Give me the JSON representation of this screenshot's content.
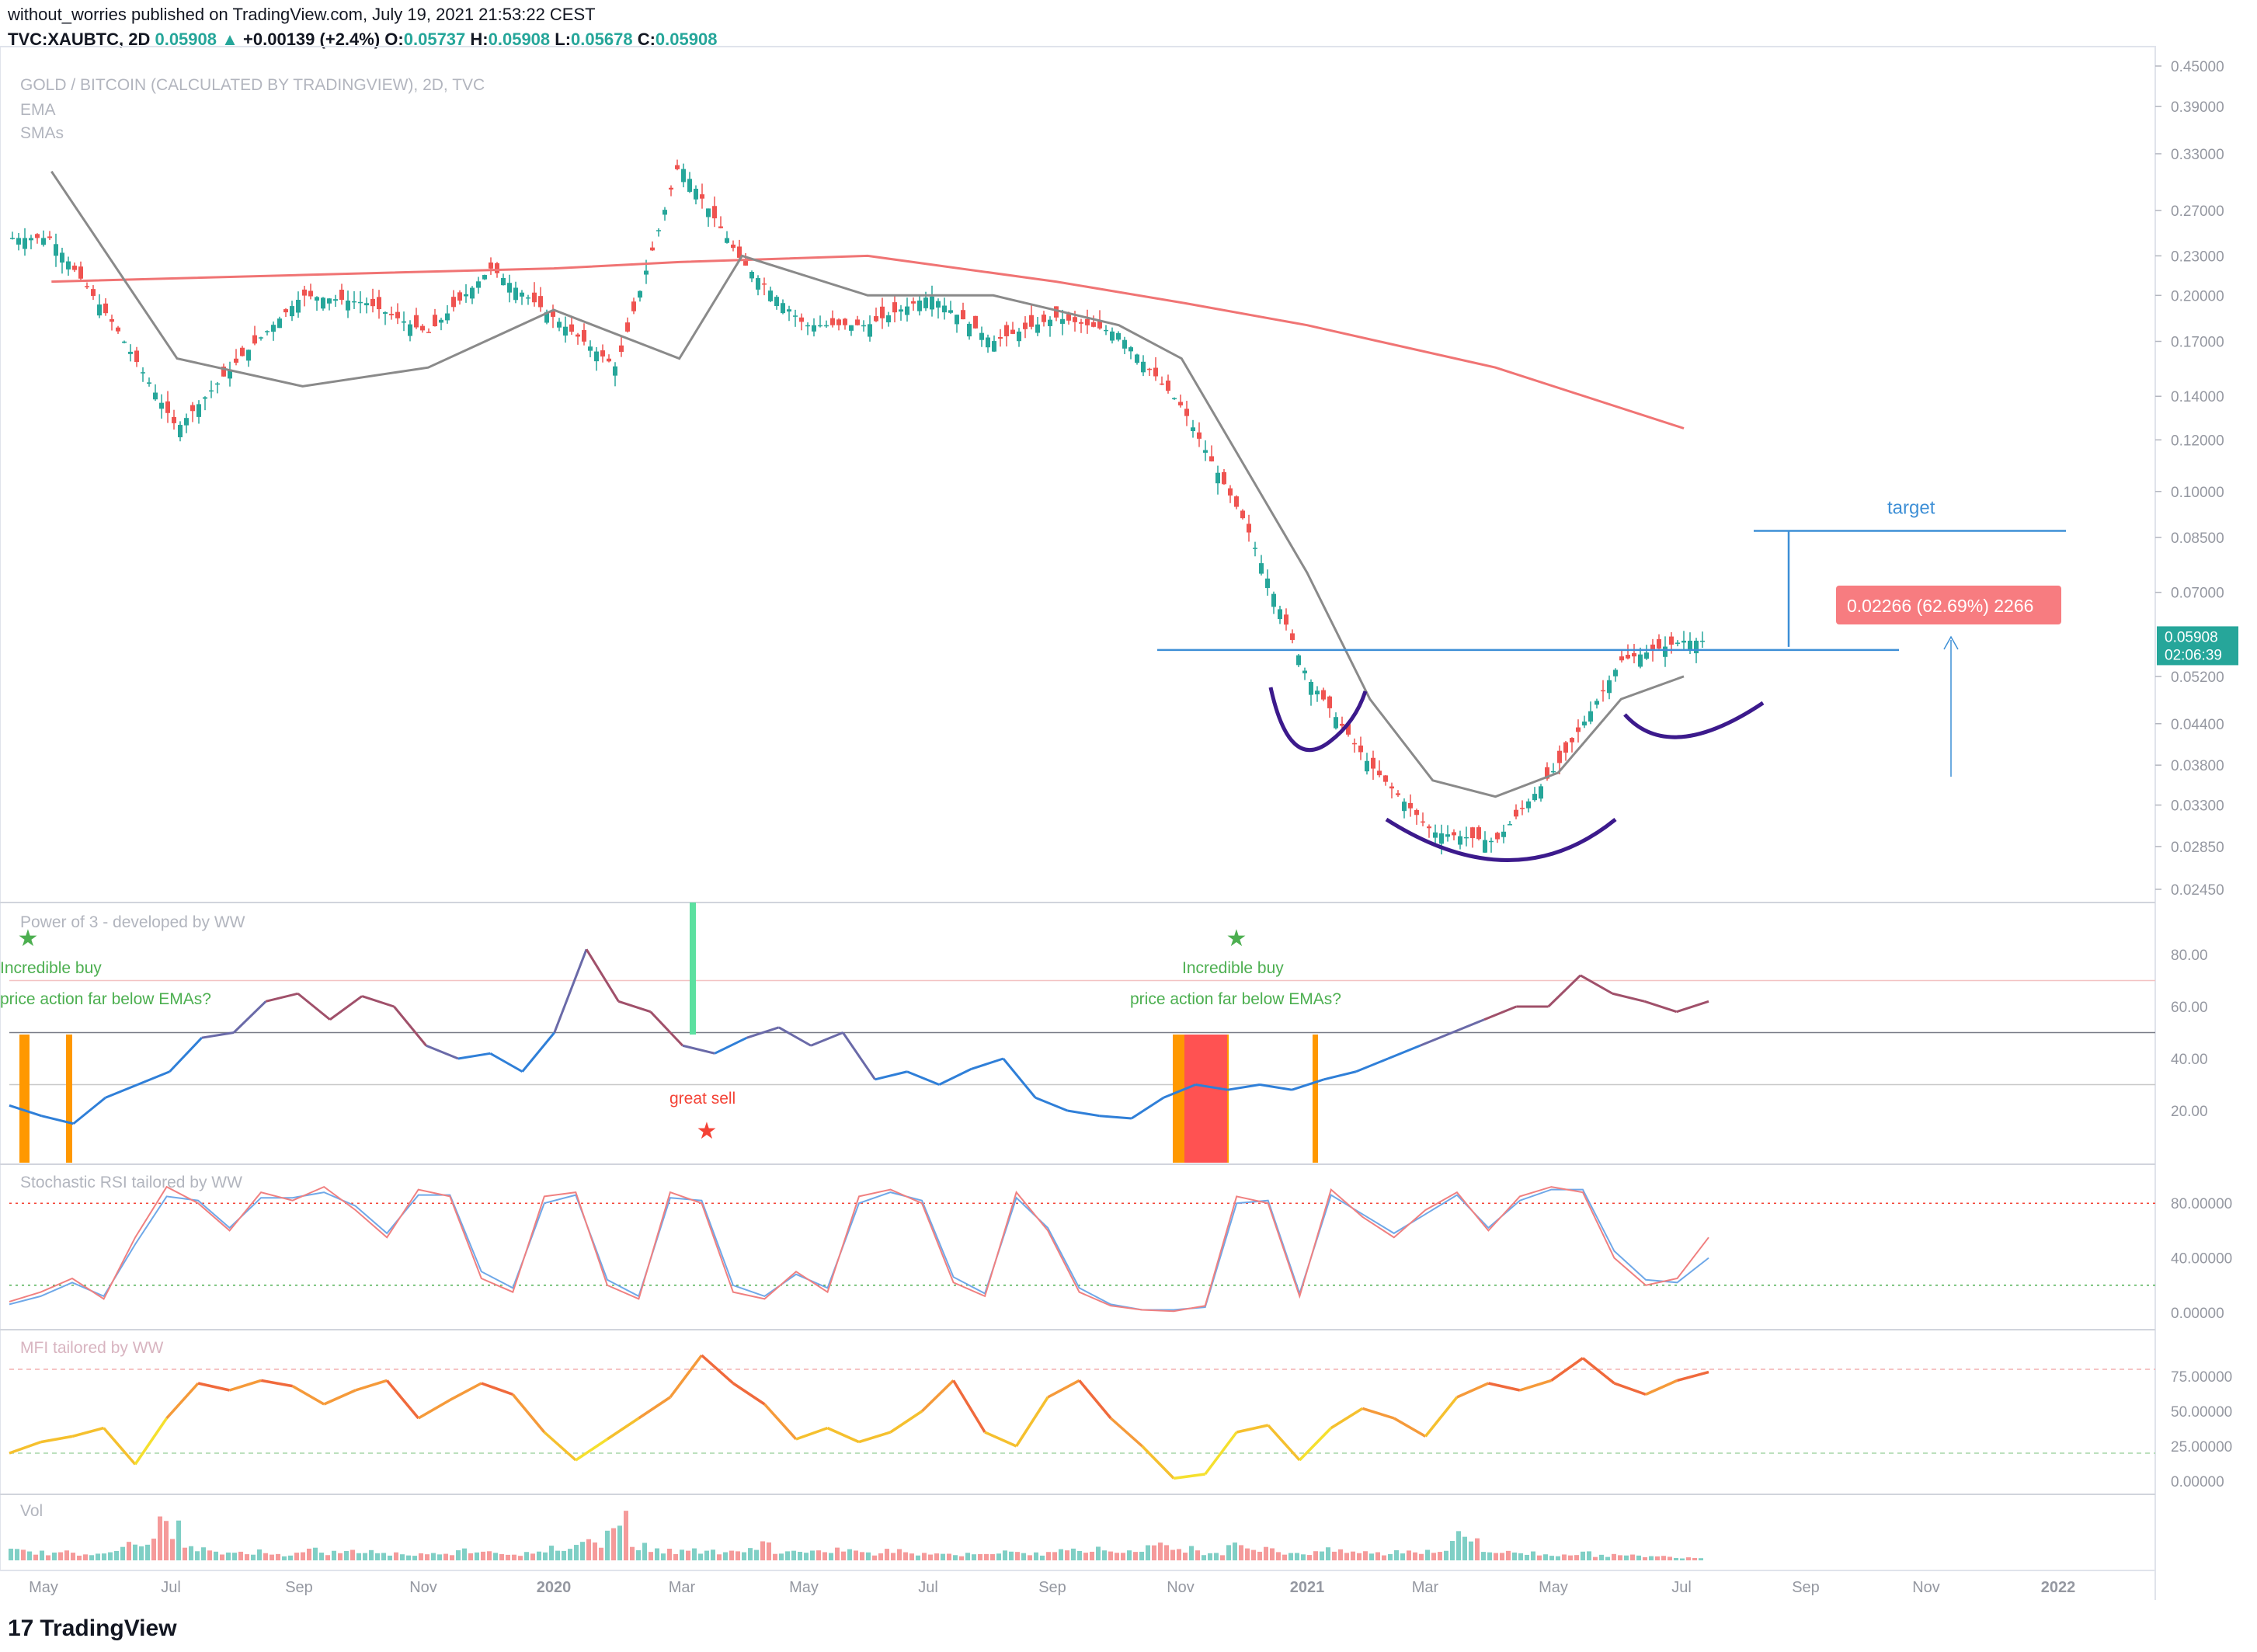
{
  "header": {
    "publisher": "without_worries published on TradingView.com, July 19, 2021 21:53:22 CEST",
    "symbol": "TVC:XAUBTC, 2D",
    "last": "0.05908",
    "change": "+0.00139 (+2.4%)",
    "o_label": "O:",
    "o_value": "0.05737",
    "h_label": "H:",
    "h_value": "0.05908",
    "l_label": "L:",
    "l_value": "0.05678",
    "c_label": "C:",
    "c_value": "0.05908"
  },
  "chart_data": {
    "type": "line",
    "main": {
      "title": "GOLD / BITCOIN (CALCULATED BY TRADINGVIEW), 2D, TVC",
      "indicators": [
        "EMA",
        "SMAs"
      ],
      "yticks": [
        "0.45000",
        "0.39000",
        "0.33000",
        "0.27000",
        "0.23000",
        "0.20000",
        "0.17000",
        "0.14000",
        "0.12000",
        "0.10000",
        "0.08500",
        "0.07000",
        "0.05200",
        "0.04400",
        "0.03800",
        "0.03300",
        "0.02850",
        "0.02450"
      ],
      "ytick_values": [
        0.45,
        0.39,
        0.33,
        0.27,
        0.23,
        0.2,
        0.17,
        0.14,
        0.12,
        0.1,
        0.085,
        0.07,
        0.052,
        0.044,
        0.038,
        0.033,
        0.0285,
        0.0245
      ],
      "scale": "log",
      "ylim": [
        0.0245,
        0.45
      ],
      "price_label": "0.05908",
      "countdown": "02:06:39",
      "price_series": {
        "name": "XAUBTC close (approx)",
        "x": [
          "2019-05",
          "2019-06",
          "2019-07",
          "2019-08",
          "2019-09",
          "2019-10",
          "2019-11",
          "2019-12",
          "2020-01",
          "2020-02",
          "2020-03",
          "2020-04",
          "2020-05",
          "2020-06",
          "2020-07",
          "2020-08",
          "2020-09",
          "2020-10",
          "2020-11",
          "2020-12",
          "2021-01",
          "2021-02",
          "2021-03",
          "2021-04",
          "2021-05",
          "2021-06",
          "2021-07"
        ],
        "values": [
          0.245,
          0.18,
          0.125,
          0.16,
          0.2,
          0.195,
          0.175,
          0.22,
          0.185,
          0.155,
          0.32,
          0.225,
          0.18,
          0.18,
          0.2,
          0.17,
          0.185,
          0.175,
          0.135,
          0.09,
          0.052,
          0.038,
          0.03,
          0.029,
          0.038,
          0.055,
          0.059
        ]
      },
      "ema_200_red": {
        "x": [
          "2019-05",
          "2019-09",
          "2020-01",
          "2020-03",
          "2020-06",
          "2020-09",
          "2020-11",
          "2021-01",
          "2021-04",
          "2021-07"
        ],
        "values": [
          0.21,
          0.215,
          0.22,
          0.225,
          0.23,
          0.21,
          0.195,
          0.18,
          0.155,
          0.125
        ]
      },
      "sma_grey": {
        "x": [
          "2019-05",
          "2019-07",
          "2019-09",
          "2019-11",
          "2020-01",
          "2020-03",
          "2020-04",
          "2020-06",
          "2020-08",
          "2020-10",
          "2020-11",
          "2021-01",
          "2021-02",
          "2021-03",
          "2021-04",
          "2021-05",
          "2021-06",
          "2021-07"
        ],
        "values": [
          0.31,
          0.16,
          0.145,
          0.155,
          0.19,
          0.16,
          0.23,
          0.2,
          0.2,
          0.18,
          0.16,
          0.075,
          0.048,
          0.036,
          0.034,
          0.037,
          0.048,
          0.052
        ]
      },
      "neckline": 0.0571,
      "target_line": 0.087,
      "measure_label": "0.02266 (62.69%) 2266",
      "target_label": "target"
    },
    "xaxis": [
      "May",
      "Jul",
      "Sep",
      "Nov",
      "2020",
      "Mar",
      "May",
      "Jul",
      "Sep",
      "Nov",
      "2021",
      "Mar",
      "May",
      "Jul",
      "Sep",
      "Nov",
      "2022"
    ],
    "power3": {
      "title": "Power of 3 - developed by WW",
      "yticks": [
        "80.00",
        "60.00",
        "40.00",
        "20.00"
      ],
      "ytick_values": [
        80,
        60,
        40,
        20
      ],
      "ylim": [
        0,
        100
      ],
      "values": [
        22,
        18,
        15,
        25,
        30,
        35,
        48,
        50,
        62,
        65,
        55,
        64,
        60,
        45,
        40,
        42,
        35,
        50,
        82,
        62,
        58,
        45,
        42,
        48,
        52,
        45,
        50,
        32,
        35,
        30,
        36,
        40,
        25,
        20,
        18,
        17,
        25,
        30,
        28,
        30,
        28,
        32,
        35,
        40,
        45,
        50,
        55,
        60,
        60,
        72,
        65,
        62,
        58,
        62
      ]
    },
    "power3_labels": [
      "Incredible buy",
      "price action far below EMAs?",
      "great sell",
      "Incredible buy",
      "price action far below EMAs?"
    ],
    "stoch": {
      "title": "Stochastic RSI tailored by WW",
      "yticks": [
        "80.00000",
        "40.00000",
        "0.00000"
      ],
      "ytick_values": [
        80,
        40,
        0
      ],
      "ylim": [
        0,
        100
      ],
      "k": [
        8,
        15,
        25,
        10,
        55,
        92,
        80,
        60,
        88,
        82,
        92,
        75,
        55,
        90,
        85,
        25,
        15,
        85,
        88,
        20,
        10,
        88,
        80,
        15,
        10,
        30,
        15,
        85,
        90,
        80,
        22,
        12,
        88,
        60,
        15,
        5,
        2,
        1,
        5,
        85,
        80,
        12,
        90,
        70,
        55,
        75,
        88,
        60,
        85,
        92,
        88,
        40,
        20,
        25,
        55
      ],
      "d": [
        6,
        12,
        22,
        12,
        50,
        85,
        82,
        62,
        84,
        84,
        88,
        78,
        58,
        86,
        86,
        30,
        18,
        80,
        86,
        24,
        12,
        84,
        82,
        20,
        12,
        28,
        18,
        80,
        88,
        82,
        26,
        14,
        84,
        62,
        18,
        6,
        2,
        2,
        4,
        80,
        82,
        14,
        86,
        72,
        58,
        72,
        86,
        62,
        82,
        90,
        90,
        45,
        24,
        22,
        40
      ]
    },
    "mfi": {
      "title": "MFI tailored by WW",
      "yticks": [
        "75.00000",
        "50.00000",
        "25.00000",
        "0.00000"
      ],
      "ytick_values": [
        75,
        50,
        25,
        0
      ],
      "ylim": [
        0,
        100
      ],
      "values": [
        20,
        28,
        32,
        38,
        12,
        45,
        70,
        65,
        72,
        68,
        55,
        65,
        72,
        45,
        58,
        70,
        62,
        35,
        15,
        30,
        45,
        60,
        90,
        70,
        55,
        30,
        38,
        28,
        35,
        50,
        72,
        35,
        25,
        60,
        72,
        45,
        25,
        2,
        5,
        35,
        40,
        15,
        38,
        52,
        45,
        32,
        60,
        70,
        65,
        72,
        88,
        70,
        62,
        72,
        78
      ]
    },
    "volume": {
      "title": "Vol",
      "values": [
        12,
        10,
        8,
        14,
        20,
        45,
        15,
        10,
        12,
        8,
        14,
        10,
        12,
        9,
        8,
        11,
        14,
        10,
        9,
        16,
        24,
        60,
        18,
        12,
        14,
        10,
        22,
        11,
        10,
        14,
        9,
        12,
        10,
        8,
        11,
        10,
        9,
        20,
        14,
        12,
        18,
        16,
        11,
        24,
        14,
        10,
        13,
        11,
        9,
        12,
        14,
        30,
        12,
        10,
        8,
        9,
        7,
        6,
        5,
        4
      ]
    }
  }
}
